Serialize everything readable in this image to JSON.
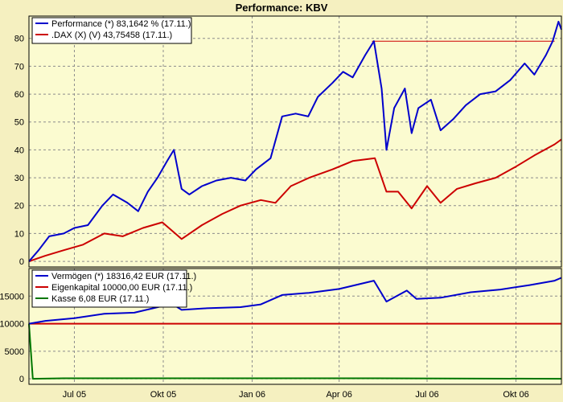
{
  "title": "Performance: KBV",
  "colors": {
    "background": "#f5f0c0",
    "plot_bg": "#fbfbd0",
    "grid": "#8c8c8c",
    "blue": "#0000cc",
    "red": "#cc0000",
    "green": "#007700"
  },
  "chart_data": [
    {
      "type": "line",
      "title": "Performance: KBV",
      "xlabel": "",
      "ylabel": "",
      "ylim": [
        -2,
        88
      ],
      "x_ticks": [
        "Jul 05",
        "Okt 05",
        "Jan 06",
        "Apr 06",
        "Jul 06",
        "Okt 06"
      ],
      "y_ticks": [
        "0",
        "10",
        "20",
        "30",
        "40",
        "50",
        "60",
        "70",
        "80"
      ],
      "grid": true,
      "legend_position": "top-left",
      "x_domain": [
        "2005-05-15",
        "2006-11-17"
      ],
      "series": [
        {
          "name": "Performance (*) 83,1642 % (17.11.)",
          "color": "#0000cc",
          "points": [
            [
              "2005-05-15",
              0
            ],
            [
              "2005-05-25",
              4
            ],
            [
              "2005-06-05",
              9
            ],
            [
              "2005-06-20",
              10
            ],
            [
              "2005-07-01",
              12
            ],
            [
              "2005-07-15",
              13
            ],
            [
              "2005-07-30",
              20
            ],
            [
              "2005-08-10",
              24
            ],
            [
              "2005-08-25",
              21
            ],
            [
              "2005-09-05",
              18
            ],
            [
              "2005-09-15",
              25
            ],
            [
              "2005-09-25",
              30
            ],
            [
              "2005-10-05",
              36
            ],
            [
              "2005-10-12",
              40
            ],
            [
              "2005-10-20",
              26
            ],
            [
              "2005-10-28",
              24
            ],
            [
              "2005-11-10",
              27
            ],
            [
              "2005-11-25",
              29
            ],
            [
              "2005-12-10",
              30
            ],
            [
              "2005-12-25",
              29
            ],
            [
              "2006-01-05",
              33
            ],
            [
              "2006-01-20",
              37
            ],
            [
              "2006-02-01",
              52
            ],
            [
              "2006-02-15",
              53
            ],
            [
              "2006-02-28",
              52
            ],
            [
              "2006-03-10",
              59
            ],
            [
              "2006-03-25",
              64
            ],
            [
              "2006-04-05",
              68
            ],
            [
              "2006-04-15",
              66
            ],
            [
              "2006-04-28",
              74
            ],
            [
              "2006-05-07",
              79
            ],
            [
              "2006-05-15",
              62
            ],
            [
              "2006-05-20",
              40
            ],
            [
              "2006-05-28",
              55
            ],
            [
              "2006-06-08",
              62
            ],
            [
              "2006-06-15",
              46
            ],
            [
              "2006-06-22",
              55
            ],
            [
              "2006-07-05",
              58
            ],
            [
              "2006-07-15",
              47
            ],
            [
              "2006-07-28",
              51
            ],
            [
              "2006-08-10",
              56
            ],
            [
              "2006-08-25",
              60
            ],
            [
              "2006-09-10",
              61
            ],
            [
              "2006-09-25",
              65
            ],
            [
              "2006-10-10",
              71
            ],
            [
              "2006-10-20",
              67
            ],
            [
              "2006-11-01",
              74
            ],
            [
              "2006-11-08",
              79
            ],
            [
              "2006-11-14",
              86
            ],
            [
              "2006-11-17",
              83.16
            ]
          ]
        },
        {
          "name": ".DAX (X) (V) 43,75458 (17.11.)",
          "color": "#cc0000",
          "points": [
            [
              "2005-05-15",
              0
            ],
            [
              "2005-06-01",
              2
            ],
            [
              "2005-06-20",
              4
            ],
            [
              "2005-07-10",
              6
            ],
            [
              "2005-08-01",
              10
            ],
            [
              "2005-08-20",
              9
            ],
            [
              "2005-09-10",
              12
            ],
            [
              "2005-09-30",
              14
            ],
            [
              "2005-10-20",
              8
            ],
            [
              "2005-11-10",
              13
            ],
            [
              "2005-12-01",
              17
            ],
            [
              "2005-12-20",
              20
            ],
            [
              "2006-01-10",
              22
            ],
            [
              "2006-01-25",
              21
            ],
            [
              "2006-02-10",
              27
            ],
            [
              "2006-03-01",
              30
            ],
            [
              "2006-03-25",
              33
            ],
            [
              "2006-04-15",
              36
            ],
            [
              "2006-05-08",
              37
            ],
            [
              "2006-05-20",
              25
            ],
            [
              "2006-06-01",
              25
            ],
            [
              "2006-06-15",
              19
            ],
            [
              "2006-07-01",
              27
            ],
            [
              "2006-07-15",
              21
            ],
            [
              "2006-08-01",
              26
            ],
            [
              "2006-08-20",
              28
            ],
            [
              "2006-09-10",
              30
            ],
            [
              "2006-10-01",
              34
            ],
            [
              "2006-10-20",
              38
            ],
            [
              "2006-11-10",
              42
            ],
            [
              "2006-11-17",
              43.75
            ]
          ]
        }
      ],
      "reference_line": {
        "value": 79,
        "from": "2006-05-05",
        "to": "2006-11-10",
        "color": "#cc0000"
      }
    },
    {
      "type": "line",
      "ylim": [
        -1000,
        20000
      ],
      "y_ticks": [
        "0",
        "5000",
        "10000",
        "15000"
      ],
      "grid": true,
      "legend_position": "top-left",
      "series": [
        {
          "name": "Vermögen (*) 18316,42 EUR (17.11.)",
          "color": "#0000cc",
          "points": [
            [
              "2005-05-15",
              10000
            ],
            [
              "2005-06-01",
              10500
            ],
            [
              "2005-07-01",
              11000
            ],
            [
              "2005-08-01",
              11800
            ],
            [
              "2005-09-01",
              12000
            ],
            [
              "2005-10-10",
              13600
            ],
            [
              "2005-10-20",
              12500
            ],
            [
              "2005-11-15",
              12800
            ],
            [
              "2005-12-20",
              13000
            ],
            [
              "2006-01-10",
              13500
            ],
            [
              "2006-02-01",
              15200
            ],
            [
              "2006-03-01",
              15600
            ],
            [
              "2006-04-01",
              16300
            ],
            [
              "2006-05-07",
              17800
            ],
            [
              "2006-05-20",
              14000
            ],
            [
              "2006-06-10",
              16000
            ],
            [
              "2006-06-20",
              14500
            ],
            [
              "2006-07-15",
              14700
            ],
            [
              "2006-08-15",
              15700
            ],
            [
              "2006-09-15",
              16200
            ],
            [
              "2006-10-15",
              17000
            ],
            [
              "2006-11-10",
              17800
            ],
            [
              "2006-11-17",
              18316.42
            ]
          ]
        },
        {
          "name": "Eigenkapital 10000,00 EUR (17.11.)",
          "color": "#cc0000",
          "points": [
            [
              "2005-05-15",
              10000
            ],
            [
              "2006-11-17",
              10000
            ]
          ]
        },
        {
          "name": "Kasse 6,08 EUR (17.11.)",
          "color": "#007700",
          "points": [
            [
              "2005-05-15",
              10000
            ],
            [
              "2005-05-17",
              5000
            ],
            [
              "2005-05-19",
              0
            ],
            [
              "2005-06-20",
              100
            ],
            [
              "2006-05-10",
              100
            ],
            [
              "2006-11-17",
              6.08
            ]
          ]
        }
      ]
    }
  ]
}
